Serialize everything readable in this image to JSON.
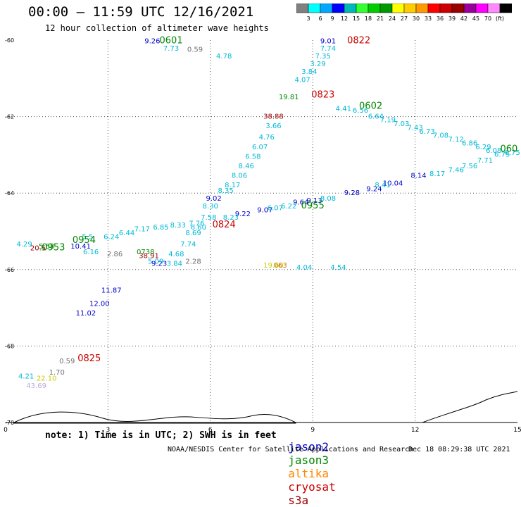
{
  "header": {
    "title": "00:00 – 11:59 UTC 12/16/2021",
    "subtitle": "12 hour collection of altimeter wave heights"
  },
  "colorbar": {
    "colors": [
      "#808080",
      "#00ffff",
      "#00a8ff",
      "#0000ff",
      "#00b8b8",
      "#33ff33",
      "#00cc00",
      "#009900",
      "#ffff00",
      "#ffcc00",
      "#ff9900",
      "#ff0000",
      "#cc0000",
      "#990000",
      "#990099",
      "#ff00ff",
      "#ff88ff",
      "#000000"
    ],
    "labels": [
      "3",
      "6",
      "9",
      "12",
      "15",
      "18",
      "21",
      "24",
      "27",
      "30",
      "33",
      "36",
      "39",
      "42",
      "45",
      "70",
      "(ft)"
    ]
  },
  "footer": {
    "note": "note: 1) Time is in UTC; 2) SWH is in feet",
    "legend": [
      {
        "name": "jason2",
        "color": "#0000cc"
      },
      {
        "name": "jason3",
        "color": "#008800"
      },
      {
        "name": "altika",
        "color": "#ff8800"
      },
      {
        "name": "cryosat",
        "color": "#cc0000"
      },
      {
        "name": "s3a",
        "color": "#990000"
      }
    ],
    "credit": "NOAA/NESDIS Center for Satellite Applications and Research",
    "stamp": "Dec 18 08:29:38 UTC 2021"
  },
  "chart_data": {
    "type": "scatter",
    "title": "00:00 – 11:59 UTC 12/16/2021",
    "subtitle": "12 hour collection of altimeter wave heights",
    "xlim": [
      0,
      15
    ],
    "ylim": [
      -70,
      -60
    ],
    "x_ticks": [
      "0",
      "3",
      "6",
      "9",
      "12",
      "15"
    ],
    "y_ticks": [
      "-60",
      "-62",
      "-64",
      "-66",
      "-68",
      "-70"
    ],
    "grid": true,
    "time_labels": [
      {
        "text": "0601",
        "x": 4.85,
        "y": -60.08,
        "color": "#008800"
      },
      {
        "text": "0822",
        "x": 10.35,
        "y": -60.08,
        "color": "#cc0000"
      },
      {
        "text": "0823",
        "x": 9.3,
        "y": -61.5,
        "color": "#cc0000"
      },
      {
        "text": "0602",
        "x": 10.7,
        "y": -61.8,
        "color": "#008800"
      },
      {
        "text": "060",
        "x": 14.75,
        "y": -62.92,
        "color": "#008800"
      },
      {
        "text": "0824",
        "x": 6.4,
        "y": -64.9,
        "color": "#cc0000"
      },
      {
        "text": "0955",
        "x": 9.0,
        "y": -64.4,
        "color": "#008800"
      },
      {
        "text": "0954",
        "x": 2.3,
        "y": -65.3,
        "color": "#008800"
      },
      {
        "text": "0953",
        "x": 1.4,
        "y": -65.5,
        "color": "#008800"
      },
      {
        "text": "0825",
        "x": 2.45,
        "y": -68.4,
        "color": "#cc0000"
      }
    ],
    "series": [
      {
        "name": "jason2",
        "color": "#0000cc",
        "points": [
          {
            "x": 4.3,
            "y": -60.08,
            "v": "9.26"
          },
          {
            "x": 9.45,
            "y": -60.08,
            "v": "9.01"
          },
          {
            "x": 6.1,
            "y": -64.2,
            "v": "9.02"
          },
          {
            "x": 6.95,
            "y": -64.6,
            "v": "9.22"
          },
          {
            "x": 7.6,
            "y": -64.5,
            "v": "9.07"
          },
          {
            "x": 8.65,
            "y": -64.3,
            "v": "9.64"
          },
          {
            "x": 9.05,
            "y": -64.25,
            "v": "9.13"
          },
          {
            "x": 10.15,
            "y": -64.05,
            "v": "9.28"
          },
          {
            "x": 10.8,
            "y": -63.95,
            "v": "9.24"
          },
          {
            "x": 11.35,
            "y": -63.8,
            "v": "10.04"
          },
          {
            "x": 12.1,
            "y": -63.6,
            "v": "8.14"
          },
          {
            "x": 4.5,
            "y": -65.9,
            "v": "9.23"
          },
          {
            "x": 3.1,
            "y": -66.6,
            "v": "11.87"
          },
          {
            "x": 2.75,
            "y": -66.95,
            "v": "12.00"
          },
          {
            "x": 2.35,
            "y": -67.2,
            "v": "11.02"
          },
          {
            "x": 2.2,
            "y": -65.45,
            "v": "10.41"
          }
        ]
      },
      {
        "name": "swh-cyan",
        "color": "#00b8d8",
        "points": [
          {
            "x": 4.85,
            "y": -60.28,
            "v": "7.73"
          },
          {
            "x": 6.4,
            "y": -60.48,
            "v": "4.78"
          },
          {
            "x": 9.45,
            "y": -60.28,
            "v": "7.74"
          },
          {
            "x": 9.3,
            "y": -60.48,
            "v": "7.35"
          },
          {
            "x": 9.15,
            "y": -60.68,
            "v": "3.29"
          },
          {
            "x": 8.9,
            "y": -60.88,
            "v": "3.84"
          },
          {
            "x": 8.7,
            "y": -61.1,
            "v": "4.07"
          },
          {
            "x": 9.9,
            "y": -61.85,
            "v": "4.41"
          },
          {
            "x": 10.4,
            "y": -61.9,
            "v": "6.56"
          },
          {
            "x": 10.85,
            "y": -62.05,
            "v": "6.64"
          },
          {
            "x": 11.2,
            "y": -62.15,
            "v": "7.19"
          },
          {
            "x": 11.6,
            "y": -62.25,
            "v": "7.03"
          },
          {
            "x": 12.0,
            "y": -62.35,
            "v": "7.43"
          },
          {
            "x": 12.35,
            "y": -62.45,
            "v": "6.73"
          },
          {
            "x": 12.75,
            "y": -62.55,
            "v": "7.08"
          },
          {
            "x": 13.2,
            "y": -62.65,
            "v": "7.12"
          },
          {
            "x": 13.6,
            "y": -62.75,
            "v": "6.86"
          },
          {
            "x": 14.0,
            "y": -62.85,
            "v": "6.29"
          },
          {
            "x": 14.3,
            "y": -62.95,
            "v": "6.08"
          },
          {
            "x": 14.55,
            "y": -63.05,
            "v": "6.75"
          },
          {
            "x": 14.85,
            "y": -63.0,
            "v": "6.75"
          },
          {
            "x": 7.85,
            "y": -62.3,
            "v": "3.66"
          },
          {
            "x": 7.65,
            "y": -62.6,
            "v": "4.76"
          },
          {
            "x": 7.45,
            "y": -62.85,
            "v": "6.07"
          },
          {
            "x": 7.25,
            "y": -63.1,
            "v": "6.58"
          },
          {
            "x": 7.05,
            "y": -63.35,
            "v": "8.46"
          },
          {
            "x": 6.85,
            "y": -63.6,
            "v": "8.06"
          },
          {
            "x": 6.65,
            "y": -63.85,
            "v": "8.17"
          },
          {
            "x": 6.45,
            "y": -64.0,
            "v": "8.35"
          },
          {
            "x": 6.0,
            "y": -64.4,
            "v": "8.30"
          },
          {
            "x": 5.95,
            "y": -64.7,
            "v": "7.58"
          },
          {
            "x": 6.6,
            "y": -64.7,
            "v": "8.23"
          },
          {
            "x": 5.6,
            "y": -64.85,
            "v": "7.76"
          },
          {
            "x": 5.65,
            "y": -64.95,
            "v": "6.60"
          },
          {
            "x": 5.05,
            "y": -64.9,
            "v": "8.33"
          },
          {
            "x": 4.55,
            "y": -64.95,
            "v": "6.85"
          },
          {
            "x": 4.0,
            "y": -65.0,
            "v": "7.17"
          },
          {
            "x": 3.55,
            "y": -65.1,
            "v": "6.44"
          },
          {
            "x": 3.1,
            "y": -65.2,
            "v": "6.24"
          },
          {
            "x": 5.5,
            "y": -65.1,
            "v": "8.69"
          },
          {
            "x": 5.35,
            "y": -65.4,
            "v": "7.74"
          },
          {
            "x": 5.0,
            "y": -65.65,
            "v": "4.68"
          },
          {
            "x": 4.95,
            "y": -65.9,
            "v": "3.84"
          },
          {
            "x": 7.9,
            "y": -64.45,
            "v": "6.07"
          },
          {
            "x": 8.3,
            "y": -64.4,
            "v": "6.22"
          },
          {
            "x": 9.45,
            "y": -64.2,
            "v": "8.08"
          },
          {
            "x": 11.05,
            "y": -63.85,
            "v": "8.41"
          },
          {
            "x": 12.65,
            "y": -63.55,
            "v": "8.17"
          },
          {
            "x": 13.2,
            "y": -63.45,
            "v": "7.46"
          },
          {
            "x": 13.6,
            "y": -63.35,
            "v": "7.56"
          },
          {
            "x": 14.05,
            "y": -63.2,
            "v": "7.71"
          },
          {
            "x": 0.55,
            "y": -65.4,
            "v": "4.29"
          },
          {
            "x": 2.4,
            "y": -65.2,
            "v": "5.5"
          },
          {
            "x": 2.5,
            "y": -65.6,
            "v": "6.16"
          },
          {
            "x": 4.4,
            "y": -65.85,
            "v": "5.09"
          },
          {
            "x": 8.75,
            "y": -66.0,
            "v": "4.04"
          },
          {
            "x": 9.75,
            "y": -66.0,
            "v": "4.54"
          },
          {
            "x": 0.6,
            "y": -68.85,
            "v": "4.21"
          }
        ]
      },
      {
        "name": "swh-gray",
        "color": "#707070",
        "points": [
          {
            "x": 5.55,
            "y": -60.3,
            "v": "0.59"
          },
          {
            "x": 5.5,
            "y": -65.85,
            "v": "2.28"
          },
          {
            "x": 3.2,
            "y": -65.65,
            "v": "2.86"
          },
          {
            "x": 1.8,
            "y": -68.45,
            "v": "0.59"
          },
          {
            "x": 1.5,
            "y": -68.75,
            "v": "1.70"
          }
        ]
      },
      {
        "name": "swh-green",
        "color": "#008800",
        "points": [
          {
            "x": 8.3,
            "y": -61.55,
            "v": "19.81"
          },
          {
            "x": 4.1,
            "y": -65.6,
            "v": "0738"
          },
          {
            "x": 1.2,
            "y": -65.45,
            "v": "5.68"
          }
        ]
      },
      {
        "name": "swh-brown",
        "color": "#990000",
        "points": [
          {
            "x": 7.85,
            "y": -62.05,
            "v": "38.88"
          },
          {
            "x": 4.2,
            "y": -65.7,
            "v": "38.91"
          },
          {
            "x": 0.95,
            "y": -65.5,
            "v": "20.5"
          }
        ]
      },
      {
        "name": "swh-yellow",
        "color": "#cccc00",
        "points": [
          {
            "x": 1.2,
            "y": -68.9,
            "v": "22.10"
          },
          {
            "x": 7.85,
            "y": -65.95,
            "v": "19.60"
          }
        ]
      },
      {
        "name": "swh-orange",
        "color": "#cc7700",
        "points": [
          {
            "x": 8.05,
            "y": -65.95,
            "v": "063"
          }
        ]
      },
      {
        "name": "swh-lavender",
        "color": "#bbaadd",
        "points": [
          {
            "x": 0.9,
            "y": -69.1,
            "v": "43.69"
          }
        ]
      }
    ]
  }
}
